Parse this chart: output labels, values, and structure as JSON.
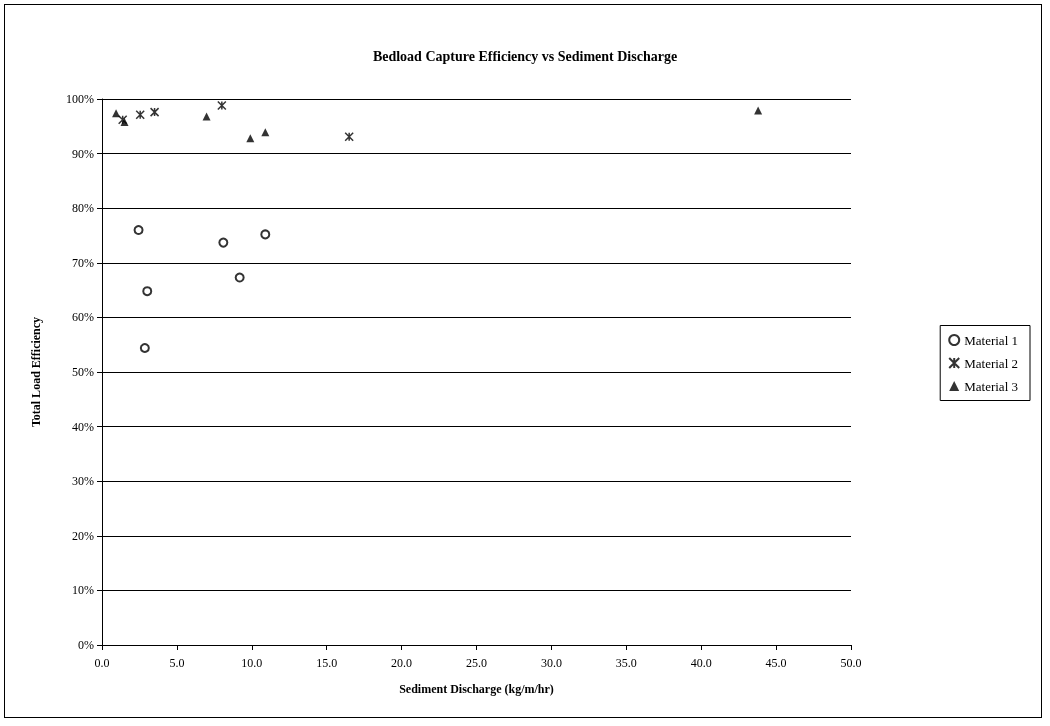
{
  "chart_data": {
    "type": "scatter",
    "title": "Bedload Capture Efficiency vs Sediment Discharge",
    "xlabel": "Sediment Discharge (kg/m/hr)",
    "ylabel": "Total Load Efficiency",
    "series": [
      {
        "name": "Material 1",
        "color": "#000000",
        "marker": "circle",
        "x": [
          2.44,
          3.02,
          2.86,
          8.1,
          9.19,
          10.9
        ],
        "values": [
          76.0,
          64.8,
          54.4,
          73.7,
          67.3,
          75.2
        ]
      },
      {
        "name": "Material 2",
        "color": "#000000",
        "marker": "cross",
        "x": [
          1.38,
          2.55,
          3.51,
          8.0,
          16.5
        ],
        "values": [
          96.2,
          97.1,
          97.6,
          98.8,
          93.1
        ]
      },
      {
        "name": "Material 3",
        "color": "#000000",
        "marker": "triangle",
        "x": [
          0.94,
          1.5,
          6.98,
          9.9,
          10.9,
          43.8
        ],
        "values": [
          97.4,
          95.8,
          96.8,
          92.8,
          93.9,
          97.9
        ]
      }
    ],
    "xlim": [
      0,
      50
    ],
    "xticks": [
      {
        "value": 0,
        "label": "0.0"
      },
      {
        "value": 5,
        "label": "5.0"
      },
      {
        "value": 10,
        "label": "10.0"
      },
      {
        "value": 15,
        "label": "15.0"
      },
      {
        "value": 20,
        "label": "20.0"
      },
      {
        "value": 25,
        "label": "25.0"
      },
      {
        "value": 30,
        "label": "30.0"
      },
      {
        "value": 35,
        "label": "35.0"
      },
      {
        "value": 40,
        "label": "40.0"
      },
      {
        "value": 45,
        "label": "45.0"
      },
      {
        "value": 50,
        "label": "50.0"
      }
    ],
    "ylim": [
      0,
      100
    ],
    "yticks": [
      {
        "value": 0,
        "label": "0%"
      },
      {
        "value": 10,
        "label": "10%"
      },
      {
        "value": 20,
        "label": "20%"
      },
      {
        "value": 30,
        "label": "30%"
      },
      {
        "value": 40,
        "label": "40%"
      },
      {
        "value": 50,
        "label": "50%"
      },
      {
        "value": 60,
        "label": "60%"
      },
      {
        "value": 70,
        "label": "70%"
      },
      {
        "value": 80,
        "label": "80%"
      },
      {
        "value": 90,
        "label": "90%"
      },
      {
        "value": 100,
        "label": "100%"
      }
    ],
    "grid": "y",
    "legend": "right"
  }
}
